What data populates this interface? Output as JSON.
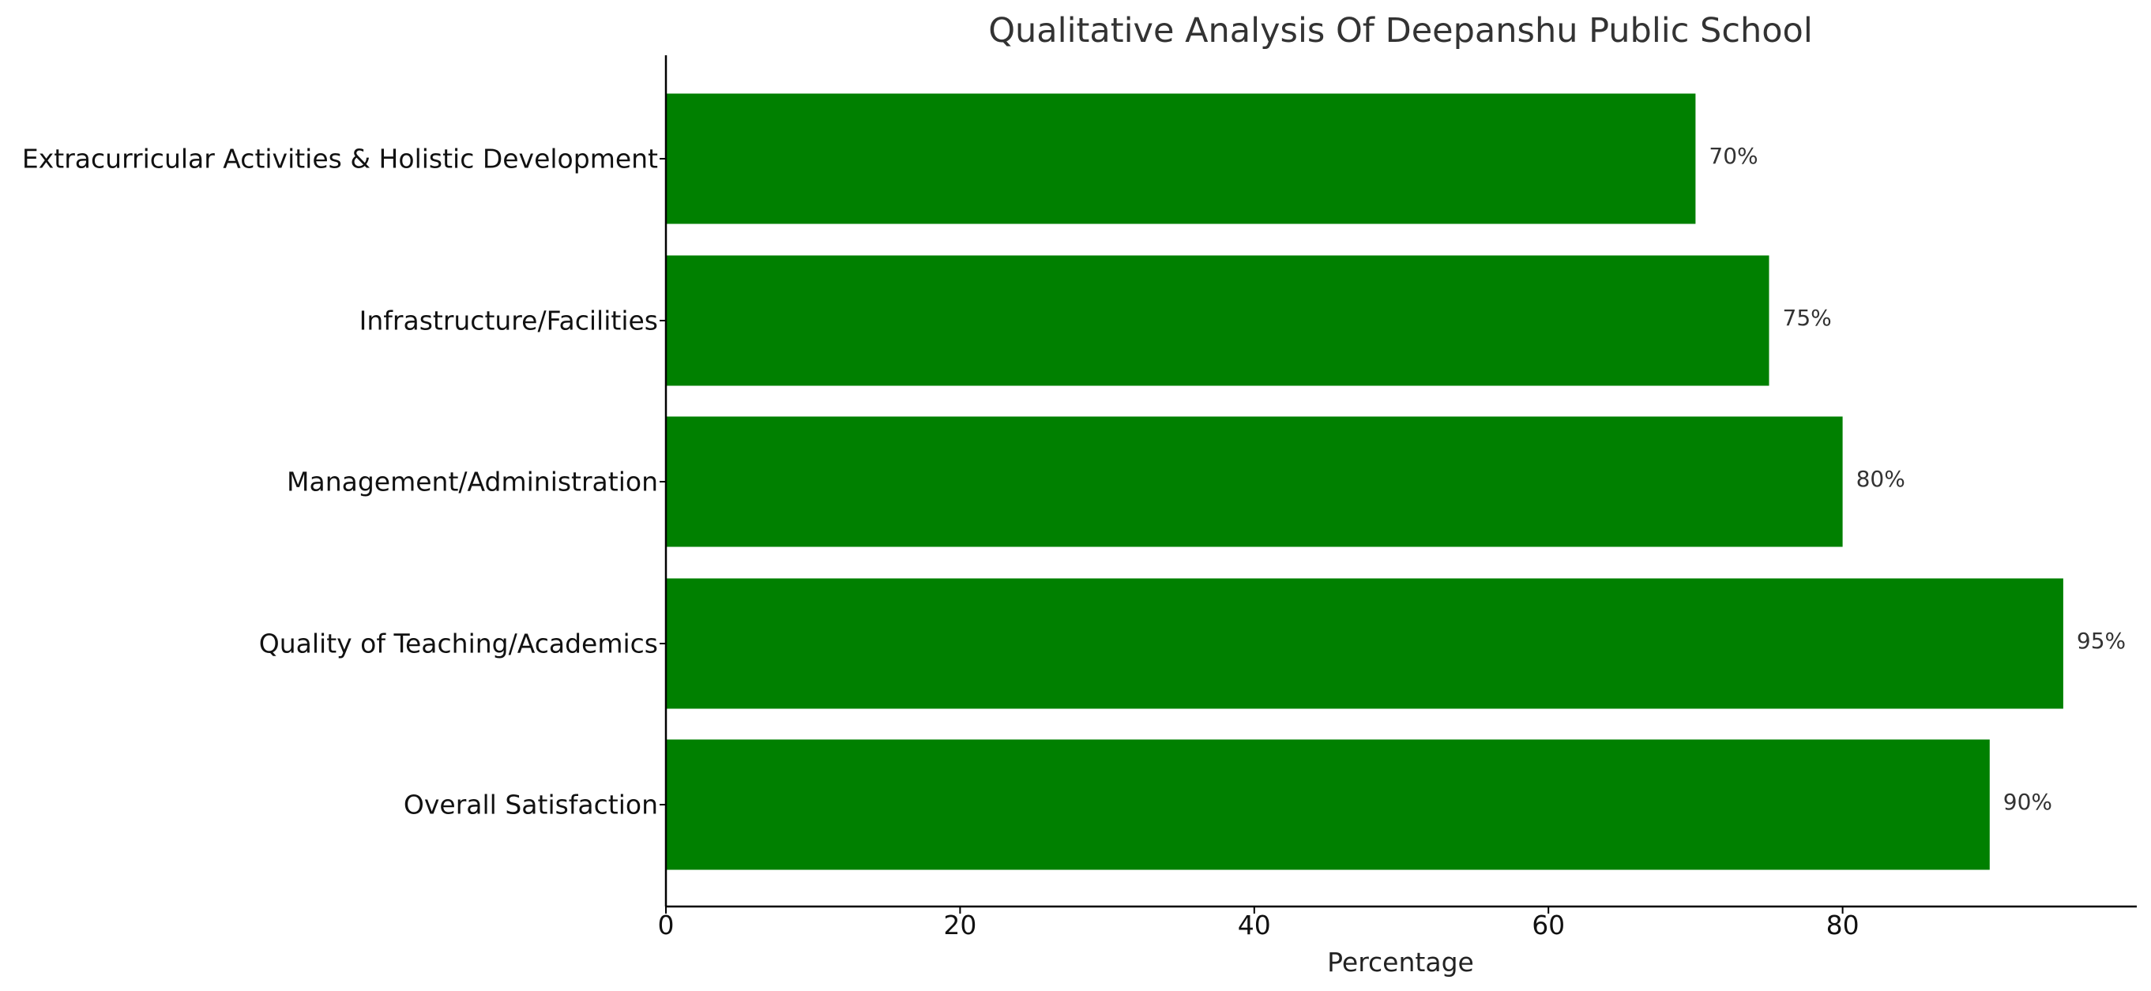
{
  "chart_data": {
    "type": "bar",
    "orientation": "horizontal",
    "title": "Qualitative Analysis Of Deepanshu Public School",
    "xlabel": "Percentage",
    "ylabel": "",
    "categories": [
      "Overall Satisfaction",
      "Quality of Teaching/Academics",
      "Management/Administration",
      "Infrastructure/Facilities",
      "Extracurricular Activities & Holistic Development"
    ],
    "values": [
      90,
      95,
      80,
      75,
      70
    ],
    "value_labels": [
      "90%",
      "95%",
      "80%",
      "75%",
      "70%"
    ],
    "xlim": [
      0,
      100
    ],
    "x_ticks": [
      0,
      20,
      40,
      60,
      80
    ],
    "x_tick_labels": [
      "0",
      "20",
      "40",
      "60",
      "80"
    ],
    "grid": false,
    "bar_color": "#008000"
  }
}
